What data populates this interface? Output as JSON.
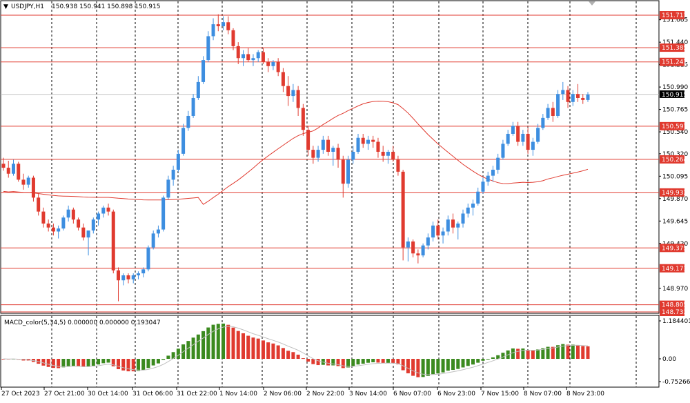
{
  "header": {
    "symbol": "USDJPY,H1",
    "ohlc": "150.938 150.941 150.898 150.915"
  },
  "price_axis": {
    "ticks": [
      "151.665",
      "151.440",
      "151.215",
      "150.990",
      "150.765",
      "150.540",
      "150.320",
      "150.095",
      "149.870",
      "149.645",
      "149.420",
      "148.970"
    ],
    "tick_values": [
      151.665,
      151.44,
      151.215,
      150.99,
      150.765,
      150.54,
      150.32,
      150.095,
      149.87,
      149.645,
      149.42,
      148.97
    ],
    "current_price_label": "150.915",
    "current_price": 150.915
  },
  "levels": [
    {
      "label": "151.711",
      "value": 151.711
    },
    {
      "label": "151.385",
      "value": 151.385
    },
    {
      "label": "151.242",
      "value": 151.242
    },
    {
      "label": "150.597",
      "value": 150.597
    },
    {
      "label": "150.264",
      "value": 150.264
    },
    {
      "label": "149.932",
      "value": 149.932
    },
    {
      "label": "149.375",
      "value": 149.375
    },
    {
      "label": "149.171",
      "value": 149.171
    },
    {
      "label": "148.805",
      "value": 148.805
    },
    {
      "label": "148.733",
      "value": 148.733
    }
  ],
  "macd": {
    "title": "MACD_color(5,34,5) 0.000000 0.000000 0.193047",
    "ticks": [
      "1.184401",
      "0.00",
      "-0.752665"
    ],
    "tick_values": [
      1.184401,
      0.0,
      -0.752665
    ]
  },
  "time_axis": {
    "labels": [
      "27 Oct 2023",
      "27 Oct 21:00",
      "30 Oct 14:00",
      "31 Oct 06:00",
      "31 Oct 22:00",
      "1 Nov 14:00",
      "2 Nov 06:00",
      "2 Nov 22:00",
      "3 Nov 14:00",
      "6 Nov 07:00",
      "6 Nov 23:00",
      "7 Nov 15:00",
      "8 Nov 07:00",
      "8 Nov 23:00"
    ]
  },
  "chart_data": {
    "type": "candlestick",
    "symbol": "USDJPY,H1",
    "ylim": [
      148.72,
      151.77
    ],
    "bull_color": "#3d8ee0",
    "bear_color": "#e03a2f",
    "ma_color": "#e03a2f",
    "macd_up_color": "#3b8a1f",
    "macd_down_color": "#e03a2f",
    "candles": [
      [
        150.22,
        150.28,
        150.15,
        150.18
      ],
      [
        150.18,
        150.25,
        150.08,
        150.12
      ],
      [
        150.12,
        150.26,
        150.1,
        150.22
      ],
      [
        150.22,
        150.24,
        150.04,
        150.06
      ],
      [
        150.06,
        150.12,
        149.96,
        150.01
      ],
      [
        150.01,
        150.1,
        149.98,
        150.08
      ],
      [
        150.08,
        150.1,
        149.84,
        149.88
      ],
      [
        149.88,
        149.92,
        149.7,
        149.74
      ],
      [
        149.74,
        149.78,
        149.58,
        149.62
      ],
      [
        149.62,
        149.66,
        149.54,
        149.58
      ],
      [
        149.58,
        149.62,
        149.5,
        149.54
      ],
      [
        149.54,
        149.6,
        149.47,
        149.57
      ],
      [
        149.57,
        149.7,
        149.55,
        149.68
      ],
      [
        149.68,
        149.8,
        149.64,
        149.76
      ],
      [
        149.76,
        149.78,
        149.62,
        149.66
      ],
      [
        149.66,
        149.68,
        149.55,
        149.58
      ],
      [
        149.58,
        149.62,
        149.45,
        149.48
      ],
      [
        149.48,
        149.52,
        149.3,
        149.55
      ],
      [
        149.55,
        149.68,
        149.52,
        149.66
      ],
      [
        149.66,
        149.74,
        149.6,
        149.72
      ],
      [
        149.72,
        149.8,
        149.68,
        149.78
      ],
      [
        149.78,
        149.82,
        149.7,
        149.74
      ],
      [
        149.74,
        149.76,
        149.12,
        149.15
      ],
      [
        149.15,
        149.18,
        148.84,
        149.05
      ],
      [
        149.05,
        149.12,
        149.0,
        149.1
      ],
      [
        149.1,
        149.12,
        149.02,
        149.06
      ],
      [
        149.06,
        149.12,
        149.02,
        149.1
      ],
      [
        149.1,
        149.14,
        149.06,
        149.12
      ],
      [
        149.12,
        149.18,
        149.08,
        149.16
      ],
      [
        149.16,
        149.4,
        149.14,
        149.38
      ],
      [
        149.38,
        149.55,
        149.36,
        149.52
      ],
      [
        149.52,
        149.6,
        149.48,
        149.56
      ],
      [
        149.56,
        149.9,
        149.54,
        149.88
      ],
      [
        149.88,
        150.1,
        149.86,
        150.06
      ],
      [
        150.06,
        150.2,
        150.0,
        150.16
      ],
      [
        150.16,
        150.36,
        150.14,
        150.32
      ],
      [
        150.32,
        150.62,
        150.3,
        150.58
      ],
      [
        150.58,
        150.75,
        150.55,
        150.7
      ],
      [
        150.7,
        150.92,
        150.68,
        150.88
      ],
      [
        150.88,
        151.1,
        150.86,
        151.04
      ],
      [
        151.04,
        151.3,
        151.02,
        151.26
      ],
      [
        151.26,
        151.55,
        151.24,
        151.5
      ],
      [
        151.5,
        151.68,
        151.46,
        151.62
      ],
      [
        151.62,
        151.72,
        151.55,
        151.6
      ],
      [
        151.6,
        151.7,
        151.56,
        151.64
      ],
      [
        151.64,
        151.7,
        151.52,
        151.56
      ],
      [
        151.56,
        151.58,
        151.36,
        151.4
      ],
      [
        151.4,
        151.44,
        151.22,
        151.28
      ],
      [
        151.28,
        151.36,
        151.2,
        151.32
      ],
      [
        151.32,
        151.38,
        151.24,
        151.26
      ],
      [
        151.26,
        151.32,
        151.2,
        151.28
      ],
      [
        151.28,
        151.36,
        151.24,
        151.34
      ],
      [
        151.34,
        151.38,
        151.22,
        151.24
      ],
      [
        151.24,
        151.28,
        151.14,
        151.2
      ],
      [
        151.2,
        151.26,
        151.16,
        151.24
      ],
      [
        151.24,
        151.28,
        151.1,
        151.14
      ],
      [
        151.14,
        151.18,
        150.94,
        151.0
      ],
      [
        151.0,
        151.1,
        150.8,
        150.9
      ],
      [
        150.9,
        151.02,
        150.84,
        150.96
      ],
      [
        150.96,
        151.0,
        150.7,
        150.78
      ],
      [
        150.78,
        150.82,
        150.5,
        150.56
      ],
      [
        150.56,
        150.6,
        150.3,
        150.36
      ],
      [
        150.36,
        150.4,
        150.22,
        150.28
      ],
      [
        150.28,
        150.4,
        150.24,
        150.36
      ],
      [
        150.36,
        150.5,
        150.32,
        150.46
      ],
      [
        150.46,
        150.5,
        150.3,
        150.34
      ],
      [
        150.34,
        150.4,
        150.2,
        150.38
      ],
      [
        150.38,
        150.42,
        150.18,
        150.26
      ],
      [
        150.26,
        150.3,
        149.88,
        150.02
      ],
      [
        150.02,
        150.3,
        149.98,
        150.26
      ],
      [
        150.26,
        150.4,
        150.22,
        150.34
      ],
      [
        150.34,
        150.52,
        150.32,
        150.48
      ],
      [
        150.48,
        150.52,
        150.38,
        150.42
      ],
      [
        150.42,
        150.5,
        150.36,
        150.46
      ],
      [
        150.46,
        150.5,
        150.38,
        150.44
      ],
      [
        150.44,
        150.48,
        150.28,
        150.34
      ],
      [
        150.34,
        150.4,
        150.24,
        150.3
      ],
      [
        150.3,
        150.36,
        150.22,
        150.34
      ],
      [
        150.34,
        150.4,
        150.24,
        150.26
      ],
      [
        150.26,
        150.3,
        150.1,
        150.14
      ],
      [
        150.14,
        150.16,
        149.25,
        149.38
      ],
      [
        149.38,
        149.48,
        149.24,
        149.44
      ],
      [
        149.44,
        149.46,
        149.28,
        149.32
      ],
      [
        149.32,
        149.36,
        149.22,
        149.3
      ],
      [
        149.3,
        149.42,
        149.28,
        149.4
      ],
      [
        149.4,
        149.52,
        149.36,
        149.48
      ],
      [
        149.48,
        149.64,
        149.44,
        149.6
      ],
      [
        149.6,
        149.66,
        149.46,
        149.5
      ],
      [
        149.5,
        149.58,
        149.42,
        149.54
      ],
      [
        149.54,
        149.7,
        149.5,
        149.66
      ],
      [
        149.66,
        149.72,
        149.52,
        149.58
      ],
      [
        149.58,
        149.64,
        149.46,
        149.62
      ],
      [
        149.62,
        149.76,
        149.58,
        149.72
      ],
      [
        149.72,
        149.82,
        149.68,
        149.78
      ],
      [
        149.78,
        149.86,
        149.7,
        149.82
      ],
      [
        149.82,
        149.98,
        149.8,
        149.94
      ],
      [
        149.94,
        150.08,
        149.92,
        150.04
      ],
      [
        150.04,
        150.14,
        150.0,
        150.1
      ],
      [
        150.1,
        150.2,
        150.04,
        150.16
      ],
      [
        150.16,
        150.32,
        150.12,
        150.28
      ],
      [
        150.28,
        150.46,
        150.26,
        150.42
      ],
      [
        150.42,
        150.56,
        150.4,
        150.52
      ],
      [
        150.52,
        150.64,
        150.5,
        150.6
      ],
      [
        150.6,
        150.64,
        150.4,
        150.44
      ],
      [
        150.44,
        150.56,
        150.4,
        150.52
      ],
      [
        150.52,
        150.58,
        150.32,
        150.36
      ],
      [
        150.36,
        150.48,
        150.3,
        150.44
      ],
      [
        150.44,
        150.62,
        150.42,
        150.58
      ],
      [
        150.58,
        150.72,
        150.56,
        150.68
      ],
      [
        150.68,
        150.82,
        150.66,
        150.78
      ],
      [
        150.78,
        150.84,
        150.64,
        150.7
      ],
      [
        150.7,
        150.96,
        150.68,
        150.92
      ],
      [
        150.92,
        151.04,
        150.86,
        150.96
      ],
      [
        150.96,
        151.0,
        150.78,
        150.84
      ],
      [
        150.84,
        150.96,
        150.8,
        150.92
      ],
      [
        150.92,
        151.02,
        150.84,
        150.88
      ],
      [
        150.88,
        150.92,
        150.82,
        150.86
      ],
      [
        150.86,
        150.94,
        150.84,
        150.915
      ]
    ]
  }
}
